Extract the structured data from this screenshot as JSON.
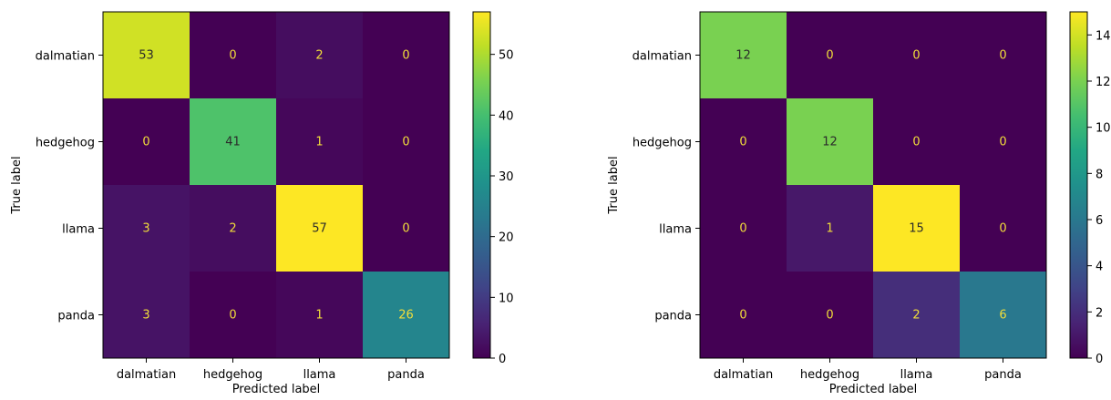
{
  "chart_data": [
    {
      "type": "heatmap",
      "title": "",
      "xlabel": "Predicted label",
      "ylabel": "True label",
      "x_categories": [
        "dalmatian",
        "hedgehog",
        "llama",
        "panda"
      ],
      "y_categories": [
        "dalmatian",
        "hedgehog",
        "llama",
        "panda"
      ],
      "values": [
        [
          53,
          0,
          2,
          0
        ],
        [
          0,
          41,
          1,
          0
        ],
        [
          3,
          2,
          57,
          0
        ],
        [
          3,
          0,
          1,
          26
        ]
      ],
      "colorscale": "viridis",
      "vmin": 0,
      "vmax": 57,
      "colorbar_ticks": [
        0,
        10,
        20,
        30,
        40,
        50
      ],
      "grid": false
    },
    {
      "type": "heatmap",
      "title": "",
      "xlabel": "Predicted label",
      "ylabel": "True label",
      "x_categories": [
        "dalmatian",
        "hedgehog",
        "llama",
        "panda"
      ],
      "y_categories": [
        "dalmatian",
        "hedgehog",
        "llama",
        "panda"
      ],
      "values": [
        [
          12,
          0,
          0,
          0
        ],
        [
          0,
          12,
          0,
          0
        ],
        [
          0,
          1,
          15,
          0
        ],
        [
          0,
          0,
          2,
          6
        ]
      ],
      "colorscale": "viridis",
      "vmin": 0,
      "vmax": 15,
      "colorbar_ticks": [
        0,
        2,
        4,
        6,
        8,
        10,
        12,
        14
      ],
      "grid": false
    }
  ]
}
